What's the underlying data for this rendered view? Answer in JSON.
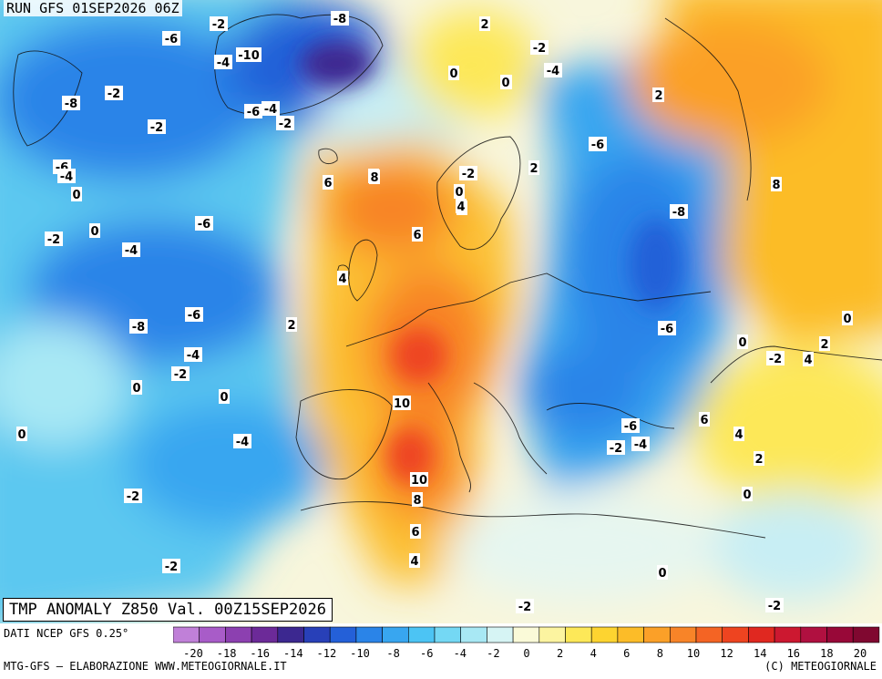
{
  "header": {
    "run_label": "RUN GFS 01SEP2026 06Z"
  },
  "map": {
    "title": "TMP ANOMALY Z850 Val. 00Z15SEP2026",
    "contour_labels": [
      "-8",
      "-2",
      "-6",
      "-4",
      "-10",
      "-2",
      "-6",
      "-4",
      "-2",
      "-8",
      "-2",
      "-6",
      "-4",
      "0",
      "0",
      "-2",
      "-4",
      "-6",
      "-6",
      "-8",
      "-4",
      "-2",
      "0",
      "0",
      "2",
      "-2",
      "-4",
      "0",
      "0",
      "2",
      "-6",
      "-8",
      "-6",
      "2",
      "6",
      "8",
      "4",
      "6",
      "8",
      "-2",
      "0",
      "4",
      "2",
      "8",
      "4",
      "2",
      "10",
      "10",
      "8",
      "6",
      "4",
      "0",
      "-4",
      "-2",
      "-2",
      "0",
      "-2",
      "6",
      "4",
      "2",
      "0",
      "0",
      "-2",
      "4",
      "2",
      "0",
      "-6",
      "-2",
      "-4",
      "2",
      "0",
      "-2"
    ],
    "colors": {
      "cold_core": "#2840c8",
      "warm_core": "#e84a14",
      "neutral": "#f6f8e2"
    }
  },
  "colorbar": {
    "tick_labels": [
      "-20",
      "-18",
      "-16",
      "-14",
      "-12",
      "-10",
      "-8",
      "-6",
      "-4",
      "-2",
      "0",
      "2",
      "4",
      "6",
      "8",
      "10",
      "12",
      "14",
      "16",
      "18",
      "20"
    ],
    "colors": [
      "#c080d8",
      "#a85cc8",
      "#8c40b0",
      "#6c2a98",
      "#3c2890",
      "#2840b8",
      "#2460d8",
      "#2a84e8",
      "#38a6f0",
      "#4cc4f4",
      "#74d8f4",
      "#a8e8f4",
      "#d6f4f4",
      "#fafad8",
      "#fcf4a0",
      "#fde858",
      "#fdd430",
      "#fcbc28",
      "#fba028",
      "#f88428",
      "#f46424",
      "#ee4420",
      "#e02820",
      "#cc1830",
      "#b01040",
      "#980838",
      "#800830"
    ]
  },
  "footer": {
    "data_source": "DATI NCEP GFS 0.25°",
    "credits": "MTG-GFS — ELABORAZIONE WWW.METEOGIORNALE.IT",
    "copyright": "(C) METEOGIORNALE"
  }
}
